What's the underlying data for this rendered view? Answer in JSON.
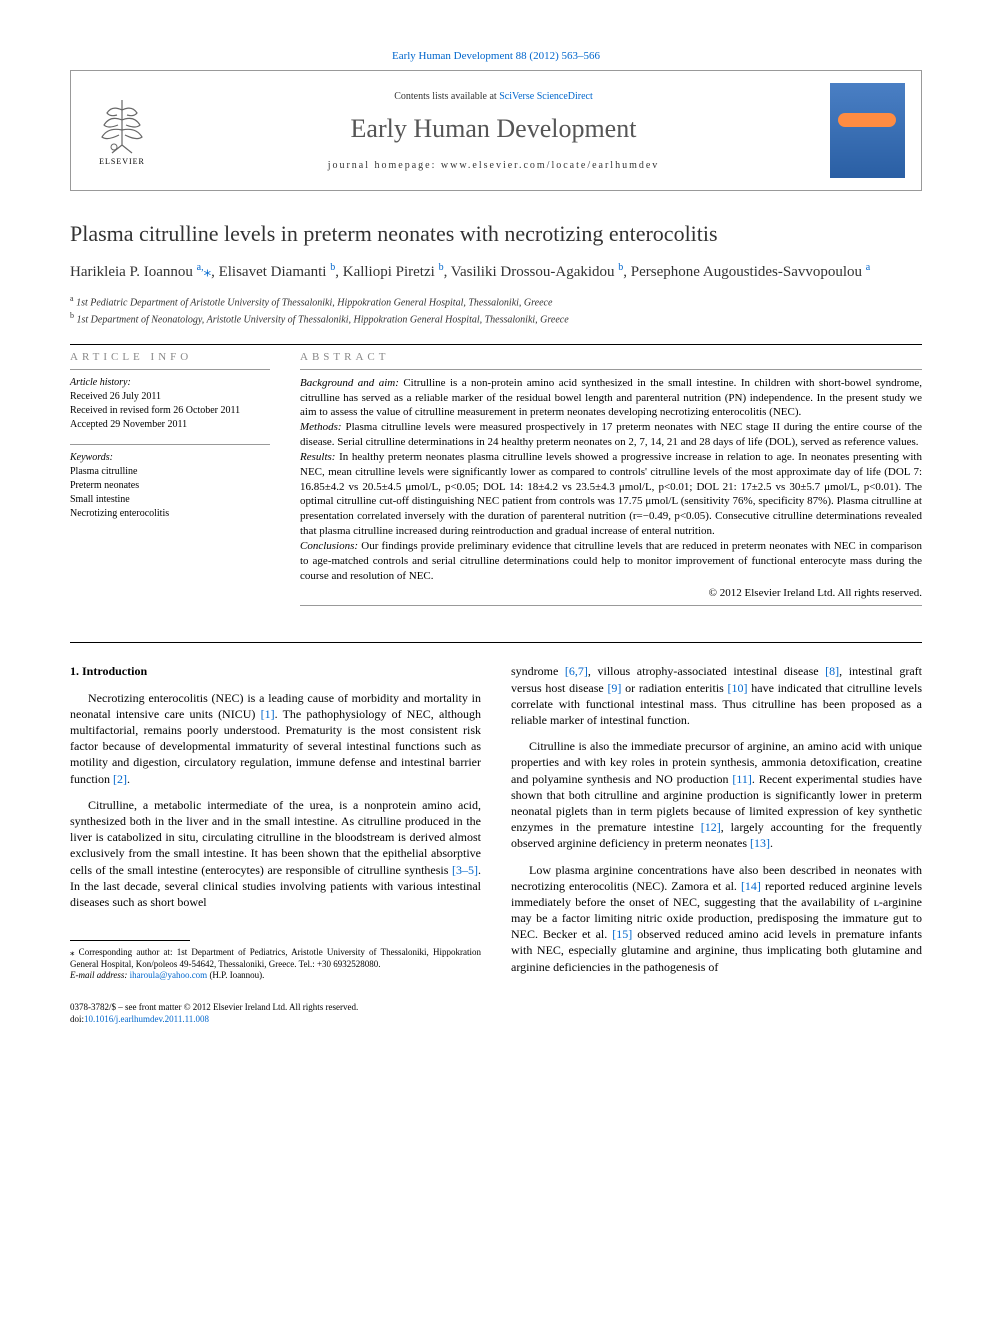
{
  "top_citation": "Early Human Development 88 (2012) 563–566",
  "header": {
    "contents_prefix": "Contents lists available at ",
    "contents_link": "SciVerse ScienceDirect",
    "journal_name": "Early Human Development",
    "homepage_prefix": "journal homepage: ",
    "homepage_url": "www.elsevier.com/locate/earlhumdev",
    "elsevier_label": "ELSEVIER"
  },
  "title": "Plasma citrulline levels in preterm neonates with necrotizing enterocolitis",
  "authors_html": "Harikleia P. Ioannou <sup><a>a,</a></sup><a>⁎</a>, Elisavet Diamanti <sup><a>b</a></sup>, Kalliopi Piretzi <sup><a>b</a></sup>, Vasiliki Drossou-Agakidou <sup><a>b</a></sup>, Persephone Augoustides-Savvopoulou <sup><a>a</a></sup>",
  "affiliations": [
    {
      "sup": "a",
      "text": "1st Pediatric Department of Aristotle University of Thessaloniki, Hippokration General Hospital, Thessaloniki, Greece"
    },
    {
      "sup": "b",
      "text": "1st Department of Neonatology, Aristotle University of Thessaloniki, Hippokration General Hospital, Thessaloniki, Greece"
    }
  ],
  "article_info": {
    "heading": "ARTICLE INFO",
    "history_label": "Article history:",
    "history": [
      "Received 26 July 2011",
      "Received in revised form 26 October 2011",
      "Accepted 29 November 2011"
    ],
    "keywords_label": "Keywords:",
    "keywords": [
      "Plasma citrulline",
      "Preterm neonates",
      "Small intestine",
      "Necrotizing enterocolitis"
    ]
  },
  "abstract": {
    "heading": "ABSTRACT",
    "sections": [
      {
        "label": "Background and aim:",
        "text": " Citrulline is a non-protein amino acid synthesized in the small intestine. In children with short-bowel syndrome, citrulline has served as a reliable marker of the residual bowel length and parenteral nutrition (PN) independence. In the present study we aim to assess the value of citrulline measurement in preterm neonates developing necrotizing enterocolitis (NEC)."
      },
      {
        "label": "Methods:",
        "text": " Plasma citrulline levels were measured prospectively in 17 preterm neonates with NEC stage II during the entire course of the disease. Serial citrulline determinations in 24 healthy preterm neonates on 2, 7, 14, 21 and 28 days of life (DOL), served as reference values."
      },
      {
        "label": "Results:",
        "text": " In healthy preterm neonates plasma citrulline levels showed a progressive increase in relation to age. In neonates presenting with NEC, mean citrulline levels were significantly lower as compared to controls' citrulline levels of the most approximate day of life (DOL 7: 16.85±4.2 vs 20.5±4.5 μmol/L, p<0.05; DOL 14: 18±4.2 vs 23.5±4.3 μmol/L, p<0.01; DOL 21: 17±2.5 vs 30±5.7 μmol/L, p<0.01). The optimal citrulline cut-off distinguishing NEC patient from controls was 17.75 μmol/L (sensitivity 76%, specificity 87%). Plasma citrulline at presentation correlated inversely with the duration of parenteral nutrition (r=−0.49, p<0.05). Consecutive citrulline determinations revealed that plasma citrulline increased during reintroduction and gradual increase of enteral nutrition."
      },
      {
        "label": "Conclusions:",
        "text": " Our findings provide preliminary evidence that citrulline levels that are reduced in preterm neonates with NEC in comparison to age-matched controls and serial citrulline determinations could help to monitor improvement of functional enterocyte mass during the course and resolution of NEC."
      }
    ],
    "copyright": "© 2012 Elsevier Ireland Ltd. All rights reserved."
  },
  "body": {
    "section_heading": "1. Introduction",
    "left_paragraphs": [
      "Necrotizing enterocolitis (NEC) is a leading cause of morbidity and mortality in neonatal intensive care units (NICU) <a class=\"ref-link\">[1]</a>. The pathophysiology of NEC, although multifactorial, remains poorly understood. Prematurity is the most consistent risk factor because of developmental immaturity of several intestinal functions such as motility and digestion, circulatory regulation, immune defense and intestinal barrier function <a class=\"ref-link\">[2]</a>.",
      "Citrulline, a metabolic intermediate of the urea, is a nonprotein amino acid, synthesized both in the liver and in the small intestine. As citrulline produced in the liver is catabolized in situ, circulating citrulline in the bloodstream is derived almost exclusively from the small intestine. It has been shown that the epithelial absorptive cells of the small intestine (enterocytes) are responsible of citrulline synthesis <a class=\"ref-link\">[3–5]</a>. In the last decade, several clinical studies involving patients with various intestinal diseases such as short bowel"
    ],
    "right_paragraphs": [
      "syndrome <a class=\"ref-link\">[6,7]</a>, villous atrophy-associated intestinal disease <a class=\"ref-link\">[8]</a>, intestinal graft versus host disease <a class=\"ref-link\">[9]</a> or radiation enteritis <a class=\"ref-link\">[10]</a> have indicated that citrulline levels correlate with functional intestinal mass. Thus citrulline has been proposed as a reliable marker of intestinal function.",
      "Citrulline is also the immediate precursor of arginine, an amino acid with unique properties and with key roles in protein synthesis, ammonia detoxification, creatine and polyamine synthesis and NO production <a class=\"ref-link\">[11]</a>. Recent experimental studies have shown that both citrulline and arginine production is significantly lower in preterm neonatal piglets than in term piglets because of limited expression of key synthetic enzymes in the premature intestine <a class=\"ref-link\">[12]</a>, largely accounting for the frequently observed arginine deficiency in preterm neonates <a class=\"ref-link\">[13]</a>.",
      "Low plasma arginine concentrations have also been described in neonates with necrotizing enterocolitis (NEC). Zamora et al. <a class=\"ref-link\">[14]</a> reported reduced arginine levels immediately before the onset of NEC, suggesting that the availability of ʟ-arginine may be a factor limiting nitric oxide production, predisposing the immature gut to NEC. Becker et al. <a class=\"ref-link\">[15]</a> observed reduced amino acid levels in premature infants with NEC, especially glutamine and arginine, thus implicating both glutamine and arginine deficiencies in the pathogenesis of"
    ]
  },
  "footnote": {
    "corr_symbol": "⁎",
    "corr_text": " Corresponding author at: 1st Department of Pediatrics, Aristotle University of Thessaloniki, Hippokration General Hospital, Kon/poleos 49-54642, Thessaloniki, Greece. Tel.: +30 6932528080.",
    "email_label": "E-mail address: ",
    "email": "iharoula@yahoo.com",
    "email_suffix": " (H.P. Ioannou)."
  },
  "footer": {
    "line1": "0378-3782/$ – see front matter © 2012 Elsevier Ireland Ltd. All rights reserved.",
    "doi_prefix": "doi:",
    "doi": "10.1016/j.earlhumdev.2011.11.008"
  },
  "colors": {
    "link": "#0066cc",
    "text": "#000000",
    "muted": "#888888",
    "cover_top": "#4a7fc4",
    "cover_bottom": "#2a5fa4",
    "cover_badge": "#ff8c42"
  }
}
